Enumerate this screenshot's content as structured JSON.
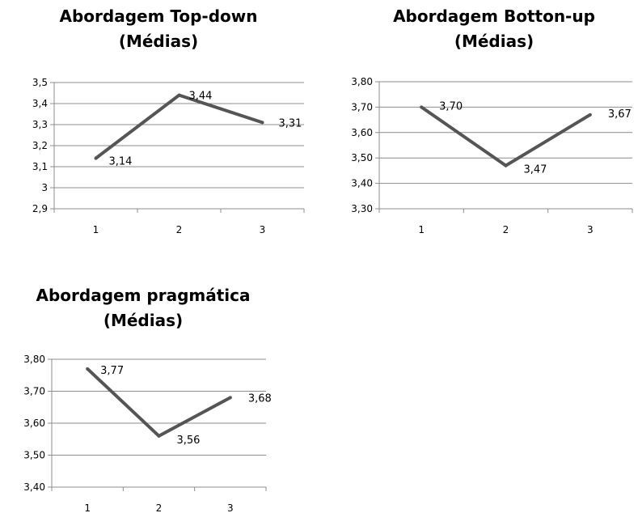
{
  "chart_data": [
    {
      "type": "line",
      "title": "Abordagem Top-down",
      "subtitle": "(Médias)",
      "categories": [
        "1",
        "2",
        "3"
      ],
      "values": [
        3.14,
        3.44,
        3.31
      ],
      "data_labels": [
        "3,14",
        "3,44",
        "3,31"
      ],
      "ylim": [
        2.9,
        3.5
      ],
      "yticks": [
        {
          "value": 3.5,
          "label": "3,5"
        },
        {
          "value": 3.4,
          "label": "3,4"
        },
        {
          "value": 3.3,
          "label": "3,3"
        },
        {
          "value": 3.2,
          "label": "3,2"
        },
        {
          "value": 3.1,
          "label": "3,1"
        },
        {
          "value": 3.0,
          "label": "3"
        },
        {
          "value": 2.9,
          "label": "2,9"
        }
      ],
      "grid": true,
      "legend": "none",
      "line_color": "#555555"
    },
    {
      "type": "line",
      "title": "Abordagem Botton-up",
      "subtitle": "(Médias)",
      "categories": [
        "1",
        "2",
        "3"
      ],
      "values": [
        3.7,
        3.47,
        3.67
      ],
      "data_labels": [
        "3,70",
        "3,47",
        "3,67"
      ],
      "ylim": [
        3.3,
        3.8
      ],
      "yticks": [
        {
          "value": 3.8,
          "label": "3,80"
        },
        {
          "value": 3.7,
          "label": "3,70"
        },
        {
          "value": 3.6,
          "label": "3,60"
        },
        {
          "value": 3.5,
          "label": "3,50"
        },
        {
          "value": 3.4,
          "label": "3,40"
        },
        {
          "value": 3.3,
          "label": "3,30"
        }
      ],
      "grid": true,
      "legend": "none",
      "line_color": "#555555"
    },
    {
      "type": "line",
      "title": "Abordagem pragmática",
      "subtitle": "(Médias)",
      "categories": [
        "1",
        "2",
        "3"
      ],
      "values": [
        3.77,
        3.56,
        3.68
      ],
      "data_labels": [
        "3,77",
        "3,56",
        "3,68"
      ],
      "ylim": [
        3.4,
        3.8
      ],
      "yticks": [
        {
          "value": 3.8,
          "label": "3,80"
        },
        {
          "value": 3.7,
          "label": "3,70"
        },
        {
          "value": 3.6,
          "label": "3,60"
        },
        {
          "value": 3.5,
          "label": "3,50"
        },
        {
          "value": 3.4,
          "label": "3,40"
        }
      ],
      "grid": true,
      "legend": "none",
      "line_color": "#555555"
    }
  ]
}
